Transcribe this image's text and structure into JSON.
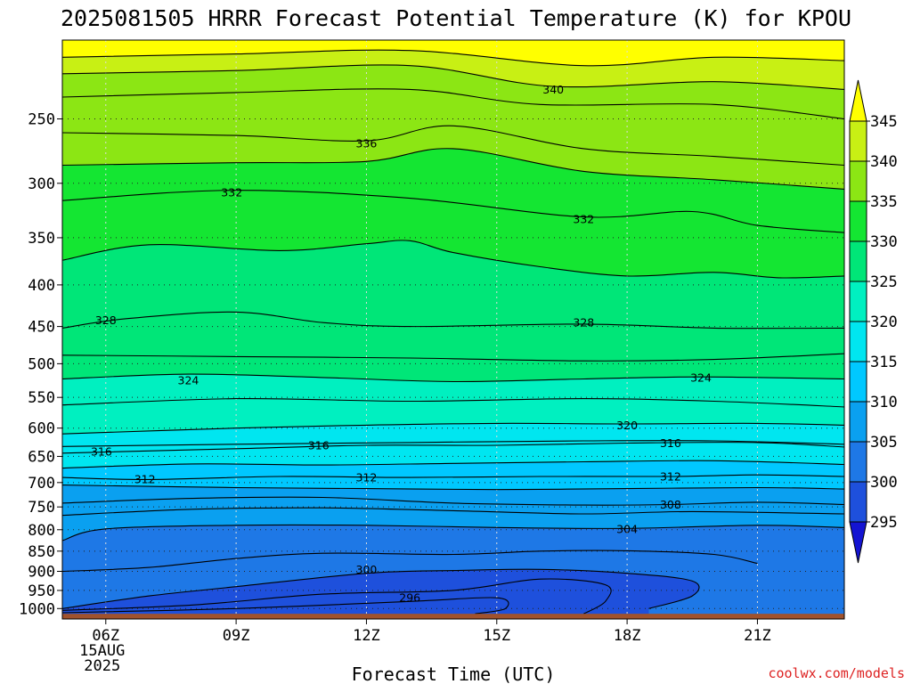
{
  "chart_data": {
    "type": "heatmap",
    "title": "2025081505 HRRR Forecast Potential Temperature (K) for KPOU",
    "xlabel": "Forecast Time (UTC)",
    "ylabel": "",
    "x_range_hours_utc": [
      5,
      23
    ],
    "y_range_hpa": [
      1030,
      200
    ],
    "y_scale": "log-pressure",
    "x_ticks": [
      {
        "hour": 6,
        "label": "06Z",
        "date_label": "15AUG",
        "year_label": "2025"
      },
      {
        "hour": 9,
        "label": "09Z"
      },
      {
        "hour": 12,
        "label": "12Z"
      },
      {
        "hour": 15,
        "label": "15Z"
      },
      {
        "hour": 18,
        "label": "18Z"
      },
      {
        "hour": 21,
        "label": "21Z"
      }
    ],
    "y_ticks": [
      250,
      300,
      350,
      400,
      450,
      500,
      550,
      600,
      650,
      700,
      750,
      800,
      850,
      900,
      950,
      1000
    ],
    "grid": "dotted",
    "colorbar": {
      "placement": "right",
      "levels": [
        295,
        300,
        305,
        310,
        315,
        320,
        325,
        330,
        335,
        340,
        345
      ],
      "labels": [
        "295",
        "300",
        "305",
        "310",
        "315",
        "320",
        "325",
        "330",
        "335",
        "340",
        "345"
      ],
      "colors": [
        "#1414d2",
        "#1e50dc",
        "#1e78e6",
        "#0aa0f0",
        "#00c8ff",
        "#00e6f0",
        "#00f0c0",
        "#00e678",
        "#14e632",
        "#8ce614",
        "#c8f014",
        "#ffff00"
      ]
    },
    "contour_interval_k": 2,
    "contour_labels": [
      {
        "value": "340",
        "hour": 16.3,
        "p": 230
      },
      {
        "value": "336",
        "hour": 12.0,
        "p": 268
      },
      {
        "value": "332",
        "hour": 8.9,
        "p": 308
      },
      {
        "value": "332",
        "hour": 17.0,
        "p": 332
      },
      {
        "value": "328",
        "hour": 6.0,
        "p": 442
      },
      {
        "value": "328",
        "hour": 17.0,
        "p": 445
      },
      {
        "value": "324",
        "hour": 7.9,
        "p": 524
      },
      {
        "value": "324",
        "hour": 19.7,
        "p": 520
      },
      {
        "value": "320",
        "hour": 18.0,
        "p": 595
      },
      {
        "value": "316",
        "hour": 5.9,
        "p": 641
      },
      {
        "value": "316",
        "hour": 10.9,
        "p": 630
      },
      {
        "value": "316",
        "hour": 19.0,
        "p": 626
      },
      {
        "value": "312",
        "hour": 6.9,
        "p": 693
      },
      {
        "value": "312",
        "hour": 12.0,
        "p": 690
      },
      {
        "value": "312",
        "hour": 19.0,
        "p": 688
      },
      {
        "value": "308",
        "hour": 19.0,
        "p": 745
      },
      {
        "value": "304",
        "hour": 18.0,
        "p": 798
      },
      {
        "value": "300",
        "hour": 12.0,
        "p": 895
      },
      {
        "value": "296",
        "hour": 13.0,
        "p": 970
      }
    ],
    "surface_pressure_hpa": 1015,
    "isentropes": [
      {
        "theta": 342,
        "points": [
          [
            5,
            210
          ],
          [
            9,
            208
          ],
          [
            13,
            206
          ],
          [
            17,
            215
          ],
          [
            20,
            210
          ],
          [
            23,
            212
          ]
        ]
      },
      {
        "theta": 340,
        "points": [
          [
            5,
            220
          ],
          [
            9,
            218
          ],
          [
            13,
            215
          ],
          [
            16.3,
            228
          ],
          [
            20,
            225
          ],
          [
            23,
            230
          ]
        ]
      },
      {
        "theta": 338,
        "points": [
          [
            5,
            235
          ],
          [
            9,
            232
          ],
          [
            13,
            230
          ],
          [
            16,
            240
          ],
          [
            20,
            240
          ],
          [
            23,
            250
          ]
        ]
      },
      {
        "theta": 336,
        "points": [
          [
            5,
            260
          ],
          [
            9,
            262
          ],
          [
            12,
            266
          ],
          [
            14,
            255
          ],
          [
            17,
            272
          ],
          [
            20,
            278
          ],
          [
            23,
            285
          ]
        ]
      },
      {
        "theta": 334,
        "points": [
          [
            5,
            285
          ],
          [
            9,
            283
          ],
          [
            12,
            282
          ],
          [
            14,
            272
          ],
          [
            17,
            290
          ],
          [
            20,
            297
          ],
          [
            23,
            305
          ]
        ]
      },
      {
        "theta": 332,
        "points": [
          [
            5,
            315
          ],
          [
            8.9,
            306
          ],
          [
            13,
            313
          ],
          [
            17,
            330
          ],
          [
            19.5,
            325
          ],
          [
            21,
            338
          ],
          [
            23,
            345
          ]
        ]
      },
      {
        "theta": 330,
        "points": [
          [
            5,
            373
          ],
          [
            7,
            357
          ],
          [
            10,
            363
          ],
          [
            12,
            356
          ],
          [
            13,
            353
          ],
          [
            14,
            365
          ],
          [
            16,
            380
          ],
          [
            18,
            390
          ],
          [
            20,
            386
          ],
          [
            21.5,
            392
          ],
          [
            23,
            390
          ]
        ]
      },
      {
        "theta": 328,
        "points": [
          [
            5,
            452
          ],
          [
            6.5,
            440
          ],
          [
            9,
            432
          ],
          [
            11,
            445
          ],
          [
            13,
            450
          ],
          [
            17,
            447
          ],
          [
            20,
            452
          ],
          [
            23,
            452
          ]
        ]
      },
      {
        "theta": 326,
        "points": [
          [
            5,
            488
          ],
          [
            9,
            490
          ],
          [
            13,
            492
          ],
          [
            17,
            496
          ],
          [
            20,
            494
          ],
          [
            23,
            486
          ]
        ]
      },
      {
        "theta": 324,
        "points": [
          [
            5,
            522
          ],
          [
            7.9,
            515
          ],
          [
            11,
            520
          ],
          [
            14,
            526
          ],
          [
            17,
            522
          ],
          [
            19.7,
            519
          ],
          [
            23,
            522
          ]
        ]
      },
      {
        "theta": 322,
        "points": [
          [
            5,
            562
          ],
          [
            9,
            552
          ],
          [
            13,
            556
          ],
          [
            17,
            552
          ],
          [
            20,
            556
          ],
          [
            23,
            565
          ]
        ]
      },
      {
        "theta": 320,
        "points": [
          [
            5,
            610
          ],
          [
            9,
            600
          ],
          [
            12,
            595
          ],
          [
            15,
            592
          ],
          [
            18,
            593
          ],
          [
            21,
            592
          ],
          [
            23,
            595
          ]
        ]
      },
      {
        "theta": 318,
        "points": [
          [
            5,
            632
          ],
          [
            9,
            628
          ],
          [
            13,
            625
          ],
          [
            17,
            622
          ],
          [
            20,
            622
          ],
          [
            23,
            628
          ]
        ]
      },
      {
        "theta": 316,
        "points": [
          [
            5,
            644
          ],
          [
            9,
            636
          ],
          [
            12,
            630
          ],
          [
            15,
            630
          ],
          [
            18,
            626
          ],
          [
            21,
            625
          ],
          [
            23,
            633
          ]
        ]
      },
      {
        "theta": 314,
        "points": [
          [
            5,
            672
          ],
          [
            8,
            664
          ],
          [
            11,
            666
          ],
          [
            14,
            663
          ],
          [
            17,
            660
          ],
          [
            20,
            658
          ],
          [
            23,
            665
          ]
        ]
      },
      {
        "theta": 312,
        "points": [
          [
            5,
            690
          ],
          [
            7,
            694
          ],
          [
            10,
            688
          ],
          [
            13,
            690
          ],
          [
            16,
            688
          ],
          [
            19,
            688
          ],
          [
            21,
            685
          ],
          [
            23,
            688
          ]
        ]
      },
      {
        "theta": 310,
        "points": [
          [
            5,
            705
          ],
          [
            9,
            710
          ],
          [
            12,
            712
          ],
          [
            15,
            714
          ],
          [
            18,
            712
          ],
          [
            21,
            710
          ],
          [
            23,
            713
          ]
        ]
      },
      {
        "theta": 308,
        "points": [
          [
            5,
            742
          ],
          [
            8,
            732
          ],
          [
            11,
            730
          ],
          [
            14,
            742
          ],
          [
            17,
            746
          ],
          [
            19,
            745
          ],
          [
            21,
            740
          ],
          [
            23,
            745
          ]
        ]
      },
      {
        "theta": 306,
        "points": [
          [
            5,
            768
          ],
          [
            8,
            755
          ],
          [
            11,
            752
          ],
          [
            14,
            758
          ],
          [
            17,
            765
          ],
          [
            19.5,
            760
          ],
          [
            23,
            765
          ]
        ]
      },
      {
        "theta": 304,
        "points": [
          [
            5,
            825
          ],
          [
            6,
            798
          ],
          [
            9,
            790
          ],
          [
            12,
            790
          ],
          [
            15,
            795
          ],
          [
            18,
            797
          ],
          [
            21,
            790
          ],
          [
            23,
            795
          ]
        ]
      },
      {
        "theta": 302,
        "points": [
          [
            5,
            900
          ],
          [
            7,
            890
          ],
          [
            9,
            868
          ],
          [
            11,
            855
          ],
          [
            14,
            858
          ],
          [
            16,
            850
          ],
          [
            18,
            849
          ],
          [
            20,
            858
          ],
          [
            21,
            880
          ]
        ]
      },
      {
        "theta": 300,
        "points": [
          [
            5,
            1000
          ],
          [
            7,
            965
          ],
          [
            9,
            940
          ],
          [
            12,
            905
          ],
          [
            14,
            898
          ],
          [
            16,
            895
          ],
          [
            18,
            905
          ],
          [
            19.5,
            925
          ],
          [
            19.5,
            965
          ],
          [
            18.5,
            1000
          ]
        ]
      },
      {
        "theta": 298,
        "points": [
          [
            5,
            1005
          ],
          [
            8,
            990
          ],
          [
            11,
            960
          ],
          [
            14,
            950
          ],
          [
            16,
            920
          ],
          [
            17.5,
            935
          ],
          [
            17.5,
            980
          ],
          [
            17,
            1015
          ]
        ]
      },
      {
        "theta": 296,
        "points": [
          [
            5,
            1012
          ],
          [
            9,
            1000
          ],
          [
            13,
            980
          ],
          [
            15,
            970
          ],
          [
            15.2,
            1000
          ],
          [
            14.5,
            1015
          ]
        ]
      }
    ]
  },
  "credit": "coolwx.com/models"
}
